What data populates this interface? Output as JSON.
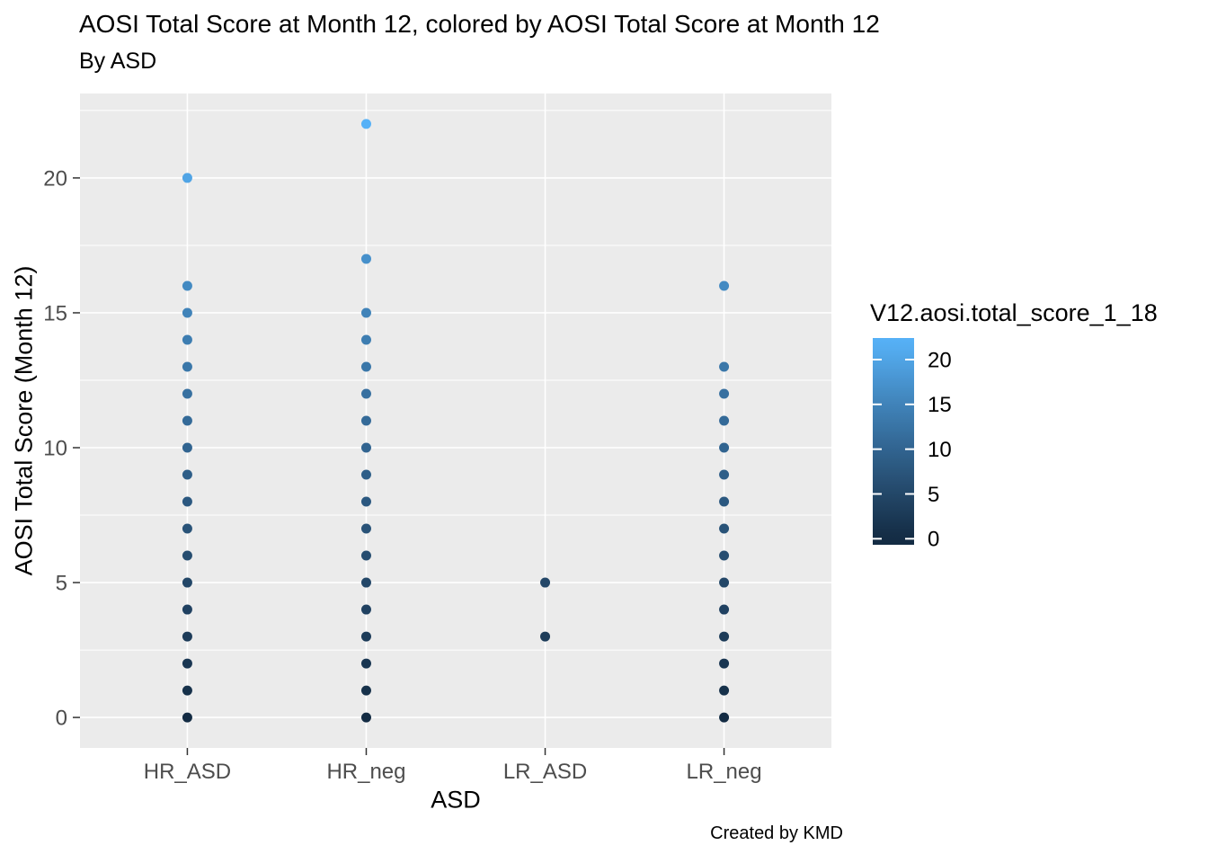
{
  "chart_data": {
    "type": "scatter",
    "title": "AOSI Total Score at Month 12, colored by AOSI Total Score at Month 12",
    "subtitle": "By ASD",
    "caption": "Created by KMD",
    "xlabel": "ASD",
    "ylabel": "AOSI Total Score (Month 12)",
    "categories": [
      "HR_ASD",
      "HR_neg",
      "LR_ASD",
      "LR_neg"
    ],
    "series": [
      {
        "name": "HR_ASD",
        "values": [
          0,
          1,
          2,
          3,
          4,
          5,
          6,
          7,
          8,
          9,
          10,
          11,
          12,
          13,
          14,
          15,
          16,
          20
        ]
      },
      {
        "name": "HR_neg",
        "values": [
          0,
          1,
          2,
          3,
          4,
          5,
          6,
          7,
          8,
          9,
          10,
          11,
          12,
          13,
          14,
          15,
          17,
          22
        ]
      },
      {
        "name": "LR_ASD",
        "values": [
          3,
          5
        ]
      },
      {
        "name": "LR_neg",
        "values": [
          0,
          1,
          2,
          3,
          4,
          5,
          6,
          7,
          8,
          9,
          10,
          11,
          12,
          13,
          16
        ]
      }
    ],
    "y_ticks": [
      0,
      5,
      10,
      15,
      20
    ],
    "y_minor_ticks": [
      2.5,
      7.5,
      12.5,
      17.5,
      22.5
    ],
    "ylim": [
      -1.13,
      23.13
    ],
    "grid": "major-and-minor-horizontal, major-vertical, white on grey panel",
    "legend_position": "right",
    "color_scale": {
      "title": "V12.aosi.total_score_1_18",
      "domain": [
        0,
        22
      ],
      "low": "#132B43",
      "high": "#56B1F7",
      "anchors": [
        {
          "value": 0,
          "color": "#132B43"
        },
        {
          "value": 5,
          "color": "#234768"
        },
        {
          "value": 10,
          "color": "#316490"
        },
        {
          "value": 15,
          "color": "#4083B9"
        },
        {
          "value": 20,
          "color": "#50A4E5"
        },
        {
          "value": 22,
          "color": "#56B1F7"
        }
      ],
      "legend_ticks": [
        20,
        15,
        10,
        5,
        0
      ]
    },
    "colors": {
      "background": "#FFFFFF",
      "panel_bg": "#EBEBEB",
      "grid": "#FFFFFF",
      "tick_mark": "#333333",
      "axis_text": "#4D4D4D",
      "title_text": "#000000",
      "legend_label_text": "#000000"
    }
  }
}
